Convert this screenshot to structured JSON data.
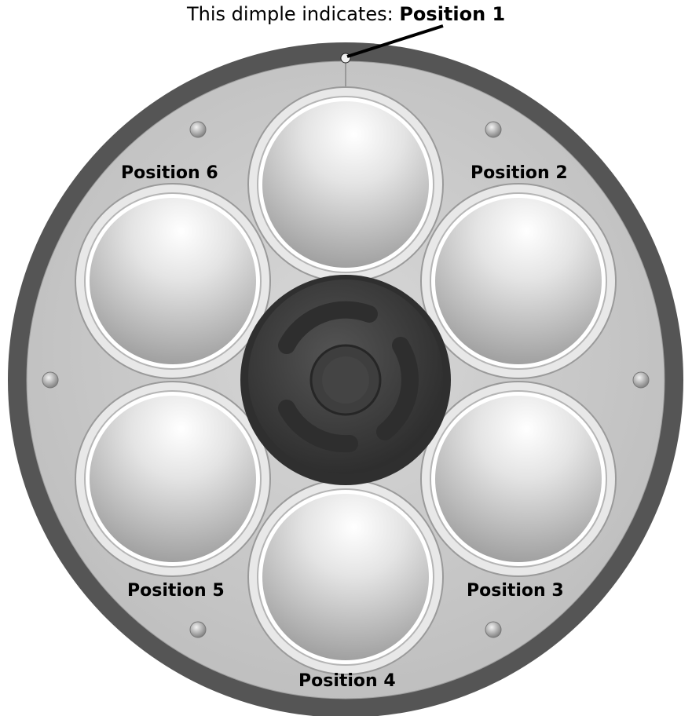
{
  "caption": {
    "prefix": "This dimple indicates: ",
    "target": "Position 1"
  },
  "positions": [
    {
      "label": "Position 2"
    },
    {
      "label": "Position 6"
    },
    {
      "label": "Position 5"
    },
    {
      "label": "Position 3"
    },
    {
      "label": "Position 4"
    }
  ],
  "colors": {
    "outer_ring": "#555555",
    "plate": "#c9c9c9",
    "hub": "#3a3a3a",
    "pointer": "#000000"
  }
}
